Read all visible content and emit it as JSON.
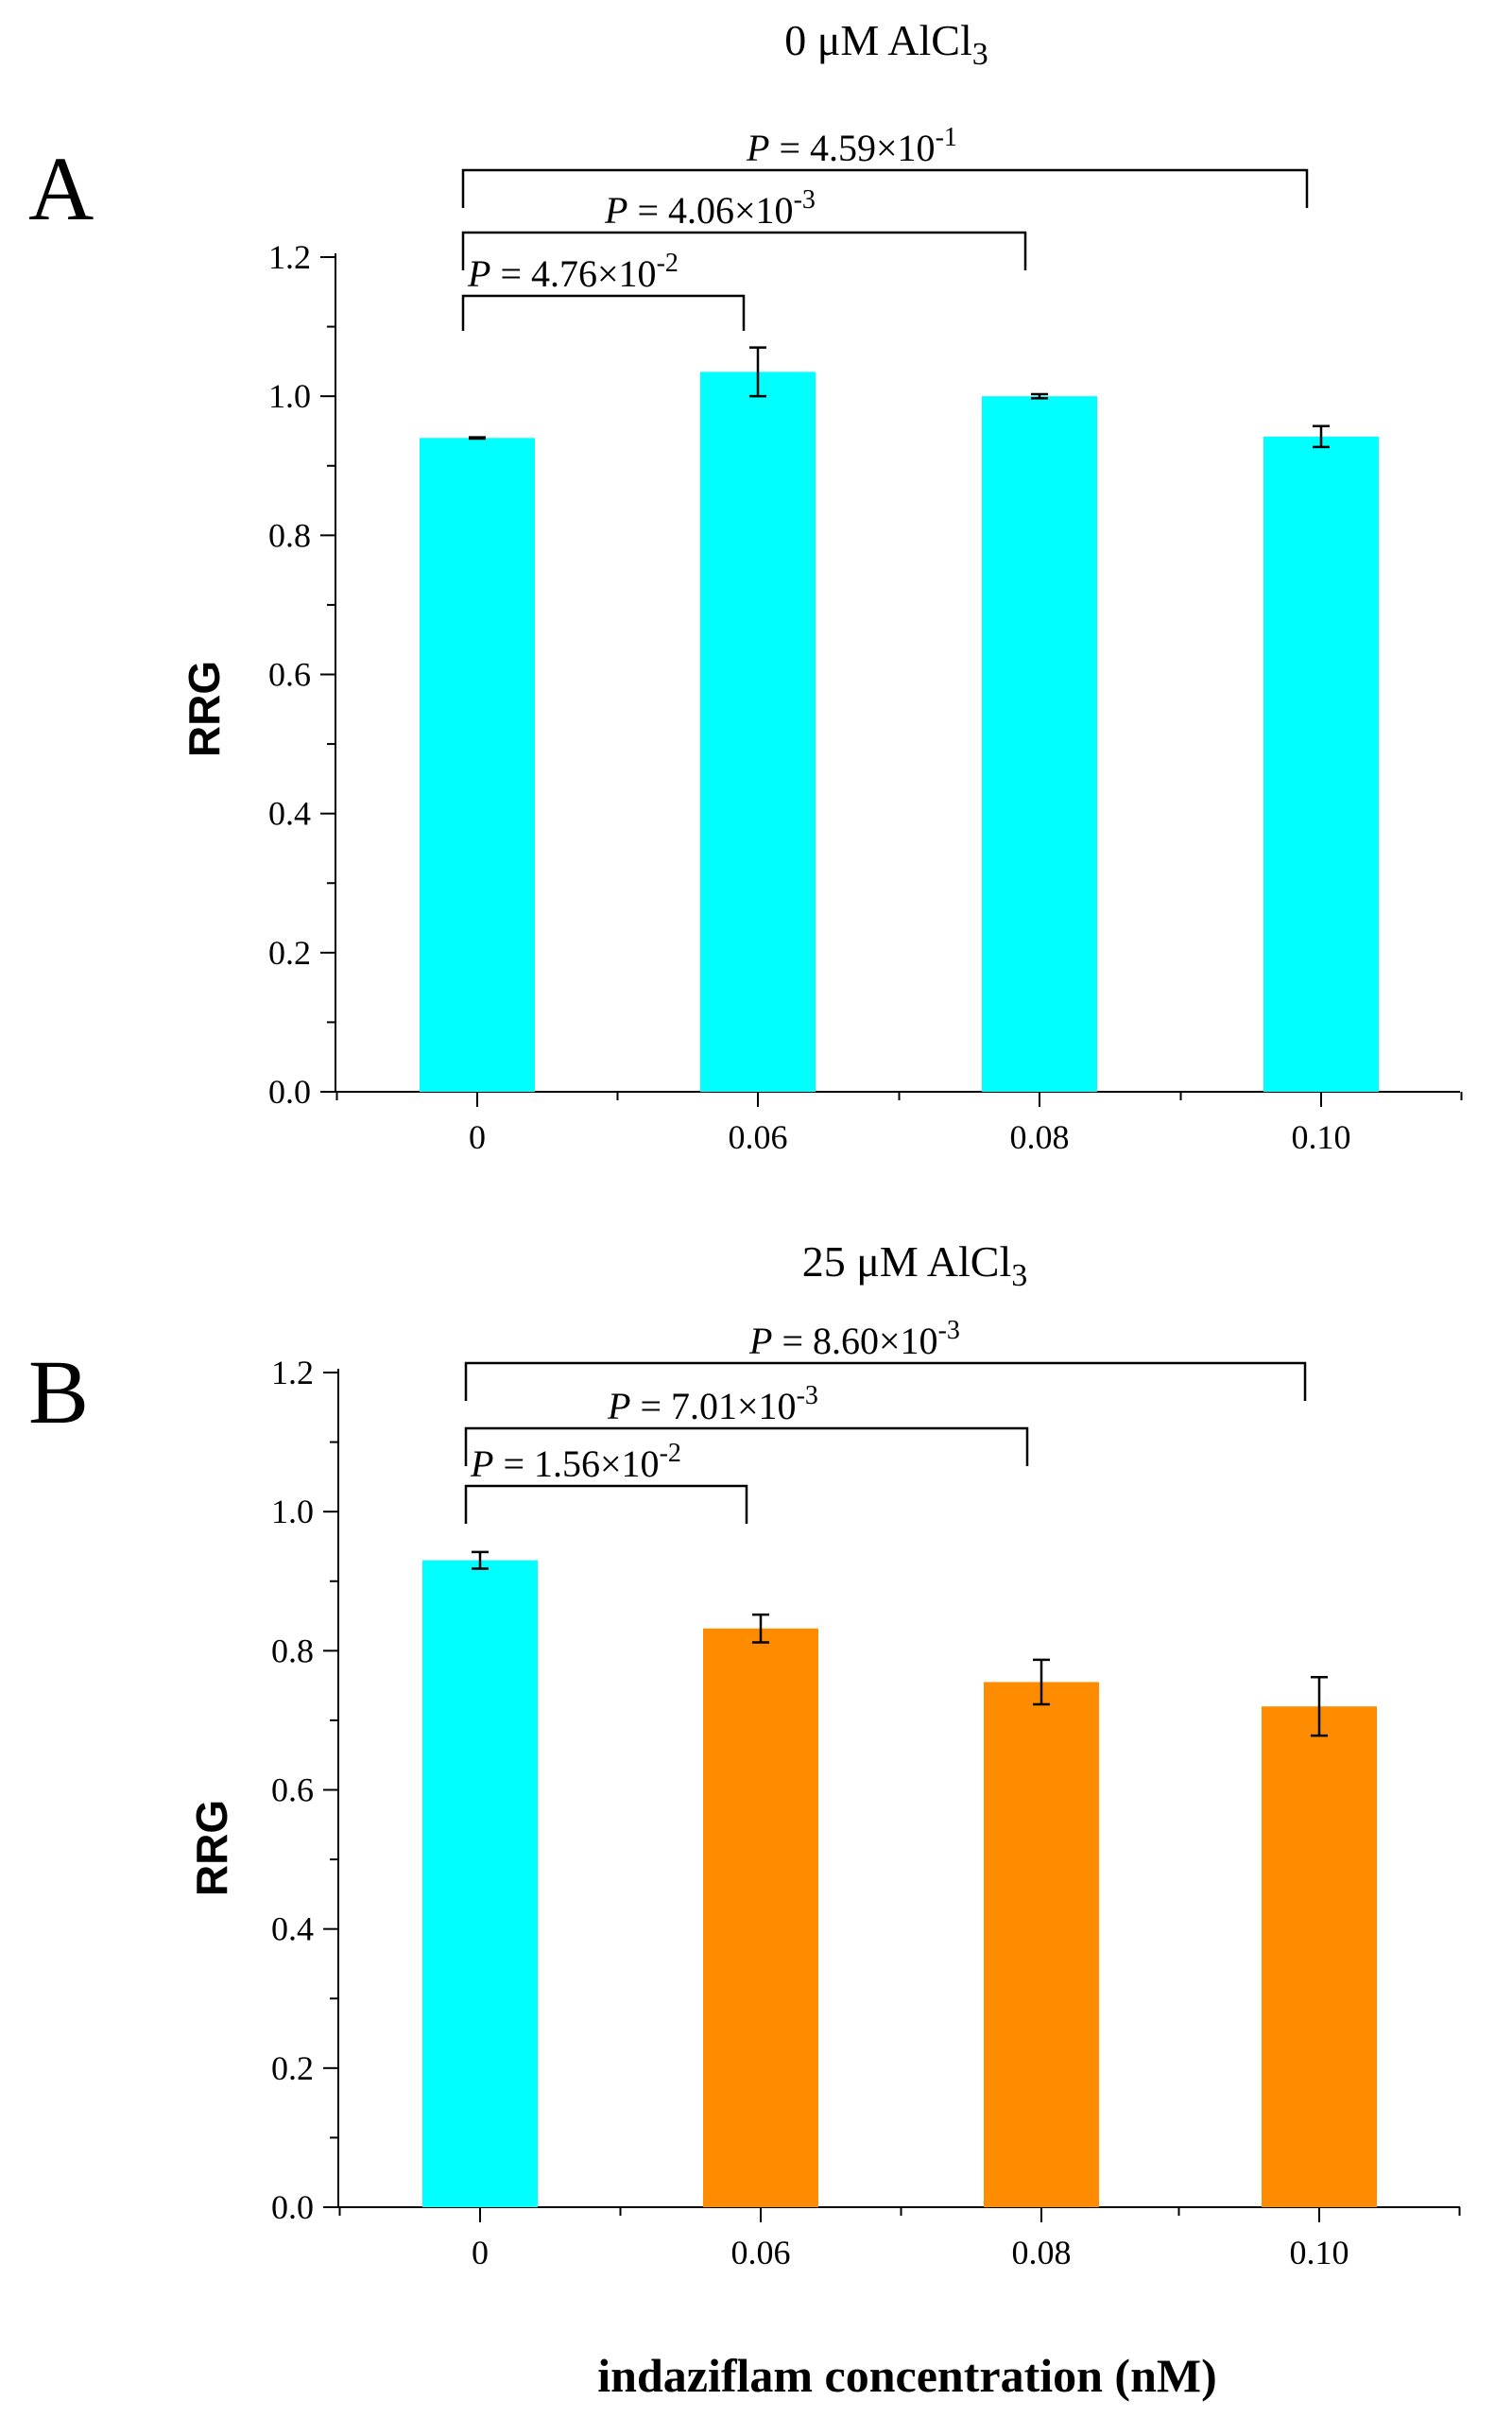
{
  "chart_data": [
    {
      "type": "bar",
      "panel": "A",
      "title": "0 μM AlCl",
      "title_subscript": "3",
      "ylabel": "RRG",
      "xlabel": "",
      "categories": [
        "0",
        "0.06",
        "0.08",
        "0.10"
      ],
      "values": [
        0.94,
        1.035,
        1.0,
        0.942
      ],
      "errors": [
        0.001,
        0.035,
        0.003,
        0.015
      ],
      "bar_colors": [
        "#00ffff",
        "#00ffff",
        "#00ffff",
        "#00ffff"
      ],
      "ylim": [
        0,
        1.2
      ],
      "yticks": [
        "0.0",
        "0.2",
        "0.4",
        "0.6",
        "0.8",
        "1.0",
        "1.2"
      ],
      "comparisons": [
        {
          "from": 0,
          "to": 1,
          "p_prefix": "P",
          "p_text": " = 4.76×10",
          "p_exp": "-2"
        },
        {
          "from": 0,
          "to": 2,
          "p_prefix": "P",
          "p_text": " = 4.06×10",
          "p_exp": "-3"
        },
        {
          "from": 0,
          "to": 3,
          "p_prefix": "P",
          "p_text": " = 4.59×10",
          "p_exp": "-1"
        }
      ]
    },
    {
      "type": "bar",
      "panel": "B",
      "title": "25 μM AlCl",
      "title_subscript": "3",
      "ylabel": "RRG",
      "xlabel": "indaziflam concentration (nM)",
      "categories": [
        "0",
        "0.06",
        "0.08",
        "0.10"
      ],
      "values": [
        0.93,
        0.832,
        0.755,
        0.72
      ],
      "errors": [
        0.012,
        0.02,
        0.032,
        0.042
      ],
      "bar_colors": [
        "#00ffff",
        "#ff8c00",
        "#ff8c00",
        "#ff8c00"
      ],
      "ylim": [
        0,
        1.2
      ],
      "yticks": [
        "0.0",
        "0.2",
        "0.4",
        "0.6",
        "0.8",
        "1.0",
        "1.2"
      ],
      "comparisons": [
        {
          "from": 0,
          "to": 1,
          "p_prefix": "P",
          "p_text": " = 1.56×10",
          "p_exp": "-2"
        },
        {
          "from": 0,
          "to": 2,
          "p_prefix": "P",
          "p_text": " = 7.01×10",
          "p_exp": "-3"
        },
        {
          "from": 0,
          "to": 3,
          "p_prefix": "P",
          "p_text": " = 8.60×10",
          "p_exp": "-3"
        }
      ]
    }
  ]
}
